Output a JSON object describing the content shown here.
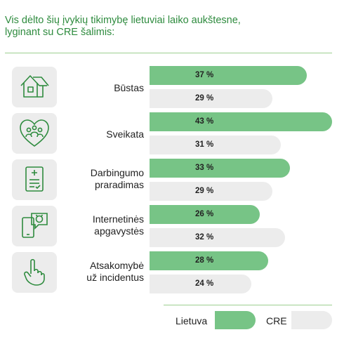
{
  "title_lines": [
    "Vis dėlto šių įvykių tikimybę lietuviai laiko aukštesne,",
    "lyginant su CRE šalimis:"
  ],
  "chart_data": {
    "type": "bar",
    "orientation": "horizontal",
    "categories": [
      {
        "lines": [
          "Būstas"
        ],
        "icon": "house-icon"
      },
      {
        "lines": [
          "Sveikata"
        ],
        "icon": "family-heart-icon"
      },
      {
        "lines": [
          "Darbingumo",
          "praradimas"
        ],
        "icon": "medical-document-icon"
      },
      {
        "lines": [
          "Internetinės",
          "apgavystės"
        ],
        "icon": "phone-scam-icon"
      },
      {
        "lines": [
          "Atsakomybė",
          "už incidentus"
        ],
        "icon": "raised-finger-icon"
      }
    ],
    "series": [
      {
        "name": "Lietuva",
        "values": [
          37,
          43,
          33,
          26,
          28
        ],
        "labels": [
          "37 %",
          "43 %",
          "33 %",
          "26 %",
          "28 %"
        ],
        "color": "#77c486"
      },
      {
        "name": "CRE",
        "values": [
          29,
          31,
          29,
          32,
          24
        ],
        "labels": [
          "29 %",
          "31 %",
          "29 %",
          "32 %",
          "24 %"
        ],
        "color": "#ececec"
      }
    ],
    "xlim": [
      0,
      43
    ],
    "legend_position": "bottom-right"
  }
}
